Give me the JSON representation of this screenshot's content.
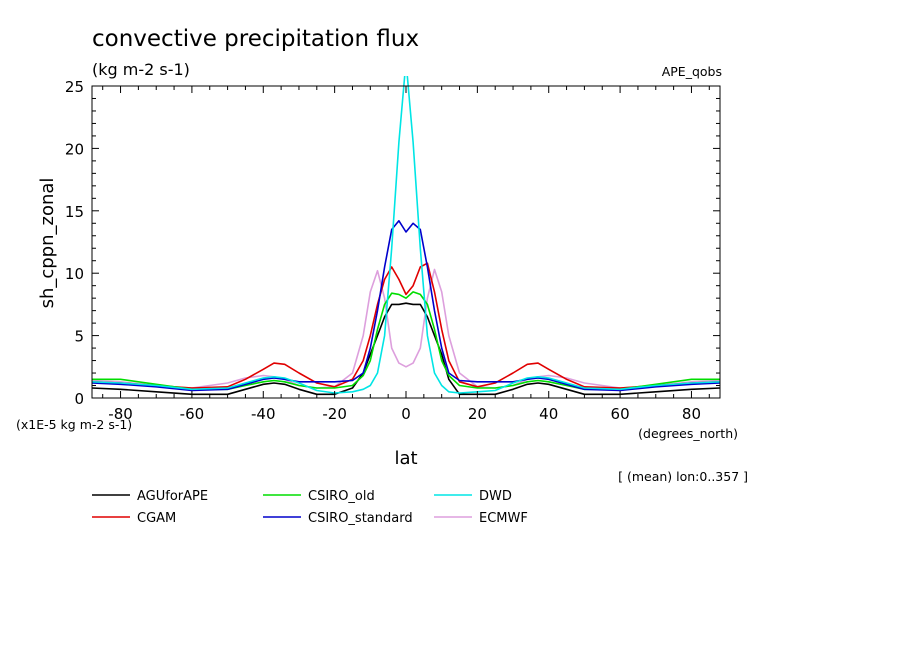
{
  "chart_data": {
    "type": "line",
    "title": "convective precipitation flux",
    "units": "(kg m-2 s-1)",
    "dataset": "APE_qobs",
    "ylabel": "sh_cppn_zonal",
    "yscale_note": "(x1E-5 kg m-2 s-1)",
    "xlabel": "lat",
    "xunits": "(degrees_north)",
    "footnote": "[ (mean) lon:0..357 ]",
    "xlim": [
      -88,
      88
    ],
    "ylim": [
      0,
      25
    ],
    "xticks": [
      -80,
      -60,
      -40,
      -20,
      0,
      20,
      40,
      60,
      80
    ],
    "xtick_labels": [
      "-80",
      "-60",
      "-40",
      "-20",
      "0",
      "20",
      "40",
      "60",
      "80"
    ],
    "yticks": [
      0,
      5,
      10,
      15,
      20,
      25
    ],
    "ytick_labels": [
      "0",
      "5",
      "10",
      "15",
      "20",
      "25"
    ],
    "x": [
      -88,
      -80,
      -70,
      -60,
      -50,
      -45,
      -40,
      -37,
      -34,
      -30,
      -25,
      -20,
      -15,
      -12,
      -10,
      -8,
      -6,
      -4,
      -2,
      0,
      2,
      4,
      6,
      8,
      10,
      12,
      15,
      20,
      25,
      30,
      34,
      37,
      40,
      45,
      50,
      60,
      70,
      80,
      88
    ],
    "series": [
      {
        "name": "AGUforAPE",
        "color": "#000000",
        "values": [
          0.8,
          0.7,
          0.5,
          0.3,
          0.3,
          0.7,
          1.1,
          1.2,
          1.1,
          0.7,
          0.3,
          0.3,
          0.8,
          2.0,
          3.5,
          5.0,
          6.5,
          7.5,
          7.5,
          7.6,
          7.5,
          7.5,
          6.5,
          5.0,
          3.5,
          1.5,
          0.3,
          0.3,
          0.3,
          0.7,
          1.1,
          1.2,
          1.1,
          0.7,
          0.3,
          0.3,
          0.5,
          0.7,
          0.8
        ]
      },
      {
        "name": "CGAM",
        "color": "#e00000",
        "values": [
          1.3,
          1.2,
          1.0,
          0.8,
          0.9,
          1.5,
          2.3,
          2.8,
          2.7,
          2.0,
          1.2,
          0.9,
          1.5,
          3.0,
          5.0,
          7.5,
          9.5,
          10.5,
          9.5,
          8.3,
          9.0,
          10.5,
          10.8,
          8.5,
          5.5,
          3.0,
          1.3,
          0.9,
          1.2,
          2.0,
          2.7,
          2.8,
          2.3,
          1.5,
          0.9,
          0.8,
          1.0,
          1.2,
          1.3
        ]
      },
      {
        "name": "CSIRO_old",
        "color": "#00dd00",
        "values": [
          1.5,
          1.5,
          1.1,
          0.7,
          0.7,
          1.0,
          1.3,
          1.4,
          1.3,
          1.0,
          0.8,
          0.8,
          1.0,
          1.8,
          3.0,
          5.5,
          7.5,
          8.4,
          8.3,
          8.0,
          8.5,
          8.3,
          7.5,
          5.5,
          3.0,
          1.8,
          1.0,
          0.8,
          0.8,
          1.0,
          1.3,
          1.4,
          1.3,
          1.0,
          0.7,
          0.7,
          1.1,
          1.5,
          1.5
        ]
      },
      {
        "name": "DWD",
        "color": "#00e5e5",
        "values": [
          1.3,
          1.2,
          1.0,
          0.7,
          0.8,
          1.2,
          1.6,
          1.7,
          1.6,
          1.2,
          0.6,
          0.4,
          0.5,
          0.7,
          1.0,
          2.0,
          5.0,
          12.0,
          20.5,
          27.0,
          20.5,
          12.0,
          5.0,
          2.0,
          1.0,
          0.5,
          0.4,
          0.5,
          0.6,
          1.2,
          1.6,
          1.7,
          1.6,
          1.2,
          0.8,
          0.7,
          1.0,
          1.2,
          1.3
        ]
      },
      {
        "name": "CSIRO_standard",
        "color": "#0000cc",
        "values": [
          1.2,
          1.1,
          0.9,
          0.6,
          0.7,
          1.1,
          1.5,
          1.6,
          1.5,
          1.3,
          1.3,
          1.3,
          1.4,
          2.0,
          4.0,
          7.0,
          10.5,
          13.5,
          14.2,
          13.3,
          14.0,
          13.5,
          10.5,
          7.0,
          4.0,
          2.0,
          1.4,
          1.3,
          1.3,
          1.3,
          1.5,
          1.6,
          1.5,
          1.1,
          0.7,
          0.6,
          0.9,
          1.1,
          1.2
        ]
      },
      {
        "name": "ECMWF",
        "color": "#dd9fdd",
        "values": [
          1.4,
          1.3,
          1.0,
          0.8,
          1.2,
          1.6,
          1.8,
          1.7,
          1.5,
          1.0,
          0.8,
          0.9,
          2.0,
          5.0,
          8.5,
          10.2,
          8.0,
          4.0,
          2.8,
          2.5,
          2.8,
          4.0,
          8.0,
          10.3,
          8.5,
          5.0,
          2.0,
          0.9,
          0.8,
          1.0,
          1.5,
          1.7,
          1.8,
          1.6,
          1.2,
          0.8,
          1.0,
          1.3,
          1.4
        ]
      }
    ],
    "legend_rows": [
      [
        "AGUforAPE",
        "CSIRO_old",
        "DWD"
      ],
      [
        "CGAM",
        "CSIRO_standard",
        "ECMWF"
      ]
    ]
  }
}
